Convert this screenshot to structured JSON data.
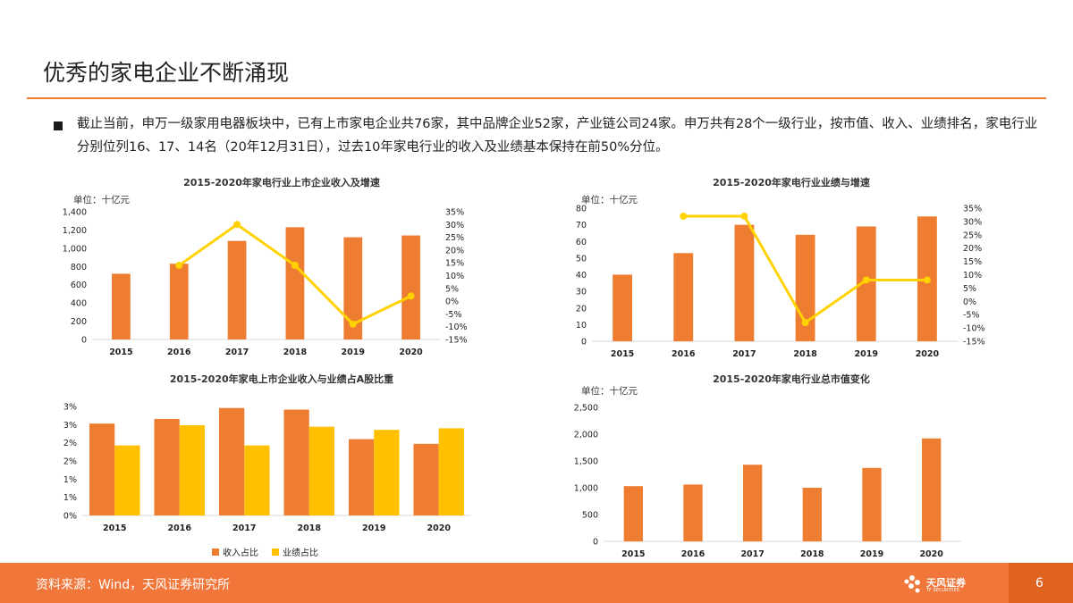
{
  "title": "优秀的家电企业不断涌现",
  "intro": "截止当前，申万一级家用电器板块中，已有上市家电企业共76家，其中品牌企业52家，产业链公司24家。申万共有28个一级行业，按市值、收入、业绩排名，家电行业分别位列16、17、14名（20年12月31日），过去10年家电行业的收入及业绩基本保持在前50%分位。",
  "footer": {
    "source": "资料来源：Wind，天风证券研究所",
    "page": "6",
    "logo_text": "天风证券",
    "logo_sub": "TF SECURITIES"
  },
  "colors": {
    "bar": "#ee7d31",
    "line": "#ffd200",
    "accent": "#ee7a2b"
  },
  "chart_data": [
    {
      "type": "bar",
      "title": "2015-2020年家电行业上市企业收入及增速",
      "unit": "单位：十亿元",
      "categories": [
        "2015",
        "2016",
        "2017",
        "2018",
        "2019",
        "2020"
      ],
      "y_ticks": [
        "1,400",
        "1,200",
        "1,000",
        "800",
        "600",
        "400",
        "200",
        "0"
      ],
      "ylim": [
        0,
        1400
      ],
      "y2_ticks": [
        "35%",
        "30%",
        "25%",
        "20%",
        "15%",
        "10%",
        "5%",
        "0%",
        "-5%",
        "-10%",
        "-15%"
      ],
      "y2lim": [
        -15,
        35
      ],
      "series": [
        {
          "kind": "bar",
          "values": [
            720,
            830,
            1080,
            1230,
            1120,
            1140
          ]
        },
        {
          "kind": "line",
          "values": [
            null,
            14,
            30,
            14,
            -9,
            2
          ]
        }
      ]
    },
    {
      "type": "bar",
      "title": "2015-2020年家电行业业绩与增速",
      "unit": "单位：十亿元",
      "categories": [
        "2015",
        "2016",
        "2017",
        "2018",
        "2019",
        "2020"
      ],
      "y_ticks": [
        "80",
        "70",
        "60",
        "50",
        "40",
        "30",
        "20",
        "10",
        "0"
      ],
      "ylim": [
        0,
        80
      ],
      "y2_ticks": [
        "35%",
        "30%",
        "25%",
        "20%",
        "15%",
        "10%",
        "5%",
        "0%",
        "-5%",
        "-10%",
        "-15%"
      ],
      "y2lim": [
        -15,
        35
      ],
      "series": [
        {
          "kind": "bar",
          "values": [
            40,
            53,
            70,
            64,
            69,
            75
          ]
        },
        {
          "kind": "line",
          "values": [
            null,
            32,
            32,
            -8,
            8,
            8
          ]
        }
      ]
    },
    {
      "type": "bar",
      "title": "2015-2020年家电上市企业收入与业绩占A股比重",
      "categories": [
        "2015",
        "2016",
        "2017",
        "2018",
        "2019",
        "2020"
      ],
      "y_ticks": [
        "3%",
        "3%",
        "2%",
        "2%",
        "1%",
        "1%",
        "0%"
      ],
      "ylim": [
        0,
        3.5
      ],
      "legend": "bottom",
      "series": [
        {
          "name": "收入占比",
          "values": [
            2.95,
            3.1,
            3.45,
            3.4,
            2.45,
            2.3
          ]
        },
        {
          "name": "业绩占比",
          "values": [
            2.25,
            2.9,
            2.25,
            2.85,
            2.75,
            2.8
          ]
        }
      ]
    },
    {
      "type": "bar",
      "title": "2015-2020年家电行业总市值变化",
      "unit": "单位：十亿元",
      "categories": [
        "2015",
        "2016",
        "2017",
        "2018",
        "2019",
        "2020"
      ],
      "y_ticks": [
        "2,500",
        "2,000",
        "1,500",
        "1,000",
        "500",
        "0"
      ],
      "ylim": [
        0,
        2500
      ],
      "series": [
        {
          "kind": "bar",
          "values": [
            1030,
            1060,
            1430,
            1000,
            1370,
            1920
          ]
        }
      ]
    }
  ]
}
